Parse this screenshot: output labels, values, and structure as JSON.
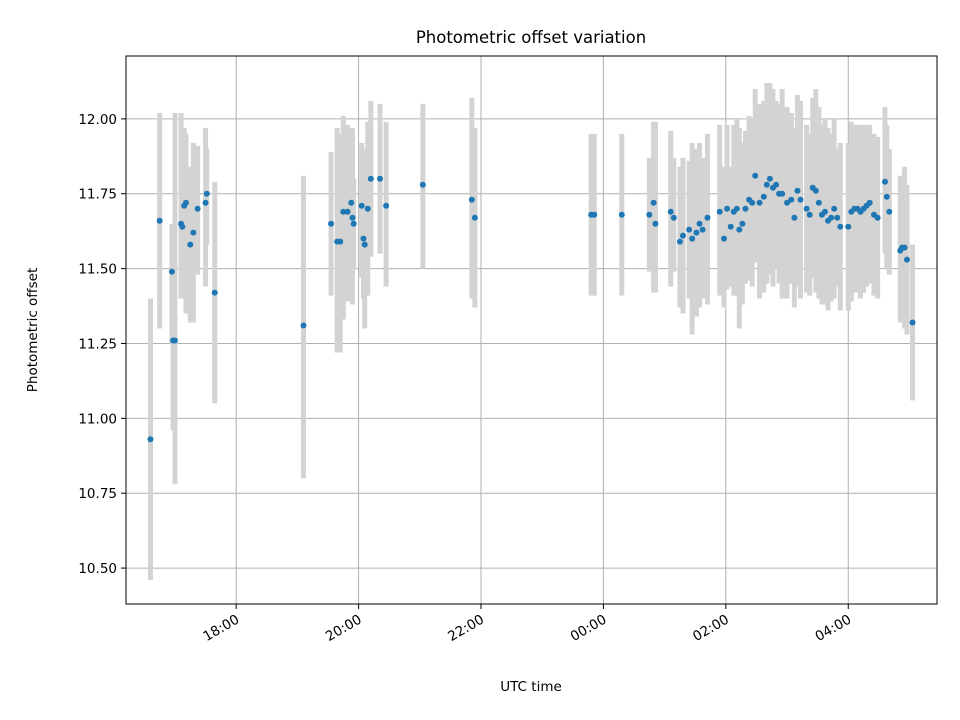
{
  "chart_data": {
    "type": "scatter",
    "title": "Photometric offset variation",
    "xlabel": "UTC time",
    "ylabel": "Photometric offset",
    "x_start": "2024-01-01T16:50",
    "xlim_hours": [
      16.2,
      29.45
    ],
    "ylim": [
      10.38,
      12.21
    ],
    "grid": true,
    "x_ticks": [
      {
        "label": "18:00",
        "hour": 18
      },
      {
        "label": "20:00",
        "hour": 20
      },
      {
        "label": "22:00",
        "hour": 22
      },
      {
        "label": "00:00",
        "hour": 24
      },
      {
        "label": "02:00",
        "hour": 26
      },
      {
        "label": "04:00",
        "hour": 28
      }
    ],
    "y_ticks": [
      {
        "label": "10.50",
        "value": 10.5
      },
      {
        "label": "10.75",
        "value": 10.75
      },
      {
        "label": "11.00",
        "value": 11.0
      },
      {
        "label": "11.25",
        "value": 11.25
      },
      {
        "label": "11.50",
        "value": 11.5
      },
      {
        "label": "11.75",
        "value": 11.75
      },
      {
        "label": "12.00",
        "value": 12.0
      }
    ],
    "colors": {
      "point": "#1f77b4",
      "errorbar": "#d3d3d3",
      "grid": "#b0b0b0"
    },
    "points": [
      [
        16.6,
        10.93,
        10.46,
        11.4
      ],
      [
        16.75,
        11.66,
        11.3,
        12.02
      ],
      [
        16.95,
        11.49,
        11.25,
        11.65
      ],
      [
        16.97,
        11.26,
        10.96,
        11.52
      ],
      [
        17.0,
        11.26,
        10.78,
        12.02
      ],
      [
        17.1,
        11.65,
        11.4,
        12.02
      ],
      [
        17.12,
        11.64,
        11.42,
        11.92
      ],
      [
        17.15,
        11.71,
        11.45,
        11.97
      ],
      [
        17.18,
        11.72,
        11.35,
        11.95
      ],
      [
        17.25,
        11.58,
        11.32,
        11.84
      ],
      [
        17.3,
        11.62,
        11.32,
        11.92
      ],
      [
        17.37,
        11.7,
        11.48,
        11.91
      ],
      [
        17.5,
        11.72,
        11.44,
        11.97
      ],
      [
        17.52,
        11.75,
        11.58,
        11.9
      ],
      [
        17.65,
        11.42,
        11.05,
        11.79
      ],
      [
        19.1,
        11.31,
        10.8,
        11.81
      ],
      [
        19.55,
        11.65,
        11.41,
        11.89
      ],
      [
        19.65,
        11.59,
        11.22,
        11.97
      ],
      [
        19.7,
        11.59,
        11.22,
        11.95
      ],
      [
        19.75,
        11.69,
        11.33,
        12.01
      ],
      [
        19.82,
        11.69,
        11.39,
        11.98
      ],
      [
        19.88,
        11.72,
        11.45,
        11.96
      ],
      [
        19.9,
        11.67,
        11.38,
        11.97
      ],
      [
        19.92,
        11.65,
        11.5,
        11.8
      ],
      [
        20.05,
        11.71,
        11.47,
        11.92
      ],
      [
        20.08,
        11.6,
        11.4,
        11.85
      ],
      [
        20.1,
        11.58,
        11.3,
        11.9
      ],
      [
        20.15,
        11.7,
        11.41,
        11.99
      ],
      [
        20.2,
        11.8,
        11.54,
        12.06
      ],
      [
        20.35,
        11.8,
        11.55,
        12.05
      ],
      [
        20.45,
        11.71,
        11.44,
        11.99
      ],
      [
        21.05,
        11.78,
        11.5,
        12.05
      ],
      [
        21.85,
        11.73,
        11.4,
        12.07
      ],
      [
        21.9,
        11.67,
        11.37,
        11.97
      ],
      [
        23.8,
        11.68,
        11.41,
        11.95
      ],
      [
        23.85,
        11.68,
        11.41,
        11.95
      ],
      [
        24.3,
        11.68,
        11.41,
        11.95
      ],
      [
        24.75,
        11.68,
        11.49,
        11.87
      ],
      [
        24.82,
        11.72,
        11.42,
        11.99
      ],
      [
        24.85,
        11.65,
        11.42,
        11.99
      ],
      [
        25.1,
        11.69,
        11.44,
        11.96
      ],
      [
        25.15,
        11.67,
        11.49,
        11.87
      ],
      [
        25.25,
        11.59,
        11.37,
        11.84
      ],
      [
        25.3,
        11.61,
        11.35,
        11.87
      ],
      [
        25.4,
        11.63,
        11.4,
        11.86
      ],
      [
        25.45,
        11.6,
        11.28,
        11.92
      ],
      [
        25.52,
        11.62,
        11.34,
        11.9
      ],
      [
        25.57,
        11.65,
        11.37,
        11.92
      ],
      [
        25.62,
        11.63,
        11.4,
        11.87
      ],
      [
        25.7,
        11.67,
        11.38,
        11.95
      ],
      [
        25.9,
        11.69,
        11.41,
        11.98
      ],
      [
        25.97,
        11.6,
        11.37,
        11.84
      ],
      [
        26.02,
        11.7,
        11.43,
        11.98
      ],
      [
        26.08,
        11.64,
        11.44,
        11.84
      ],
      [
        26.13,
        11.69,
        11.41,
        11.98
      ],
      [
        26.18,
        11.7,
        11.41,
        12.0
      ],
      [
        26.22,
        11.63,
        11.3,
        11.97
      ],
      [
        26.27,
        11.65,
        11.38,
        11.92
      ],
      [
        26.32,
        11.7,
        11.45,
        11.96
      ],
      [
        26.38,
        11.73,
        11.46,
        12.01
      ],
      [
        26.43,
        11.72,
        11.44,
        12.0
      ],
      [
        26.48,
        11.81,
        11.52,
        12.1
      ],
      [
        26.55,
        11.72,
        11.4,
        12.05
      ],
      [
        26.62,
        11.74,
        11.42,
        12.06
      ],
      [
        26.67,
        11.78,
        11.45,
        12.12
      ],
      [
        26.72,
        11.8,
        11.48,
        12.12
      ],
      [
        26.77,
        11.77,
        11.44,
        12.1
      ],
      [
        26.82,
        11.78,
        11.5,
        12.06
      ],
      [
        26.87,
        11.75,
        11.45,
        12.05
      ],
      [
        26.92,
        11.75,
        11.4,
        12.1
      ],
      [
        27.0,
        11.72,
        11.4,
        12.04
      ],
      [
        27.07,
        11.73,
        11.45,
        12.02
      ],
      [
        27.12,
        11.67,
        11.37,
        11.97
      ],
      [
        27.17,
        11.76,
        11.44,
        12.08
      ],
      [
        27.22,
        11.73,
        11.4,
        12.06
      ],
      [
        27.32,
        11.7,
        11.42,
        11.98
      ],
      [
        27.37,
        11.68,
        11.41,
        11.95
      ],
      [
        27.42,
        11.77,
        11.47,
        12.07
      ],
      [
        27.47,
        11.76,
        11.42,
        12.1
      ],
      [
        27.52,
        11.72,
        11.4,
        12.04
      ],
      [
        27.57,
        11.68,
        11.38,
        11.98
      ],
      [
        27.62,
        11.69,
        11.38,
        12.0
      ],
      [
        27.67,
        11.66,
        11.36,
        11.97
      ],
      [
        27.72,
        11.67,
        11.39,
        11.95
      ],
      [
        27.77,
        11.7,
        11.4,
        12.0
      ],
      [
        27.82,
        11.67,
        11.44,
        11.9
      ],
      [
        27.87,
        11.64,
        11.36,
        11.92
      ],
      [
        28.0,
        11.64,
        11.36,
        11.92
      ],
      [
        28.05,
        11.69,
        11.39,
        11.99
      ],
      [
        28.1,
        11.7,
        11.42,
        11.98
      ],
      [
        28.15,
        11.7,
        11.42,
        11.98
      ],
      [
        28.2,
        11.69,
        11.4,
        11.98
      ],
      [
        28.25,
        11.7,
        11.42,
        11.98
      ],
      [
        28.3,
        11.71,
        11.44,
        11.98
      ],
      [
        28.35,
        11.72,
        11.45,
        11.98
      ],
      [
        28.42,
        11.68,
        11.41,
        11.95
      ],
      [
        28.48,
        11.67,
        11.4,
        11.94
      ],
      [
        28.6,
        11.79,
        11.55,
        12.04
      ],
      [
        28.63,
        11.74,
        11.5,
        11.98
      ],
      [
        28.67,
        11.69,
        11.48,
        11.9
      ],
      [
        28.85,
        11.56,
        11.32,
        11.81
      ],
      [
        28.88,
        11.57,
        11.34,
        11.8
      ],
      [
        28.92,
        11.57,
        11.3,
        11.84
      ],
      [
        28.96,
        11.53,
        11.28,
        11.78
      ],
      [
        29.05,
        11.32,
        11.06,
        11.58
      ]
    ]
  }
}
